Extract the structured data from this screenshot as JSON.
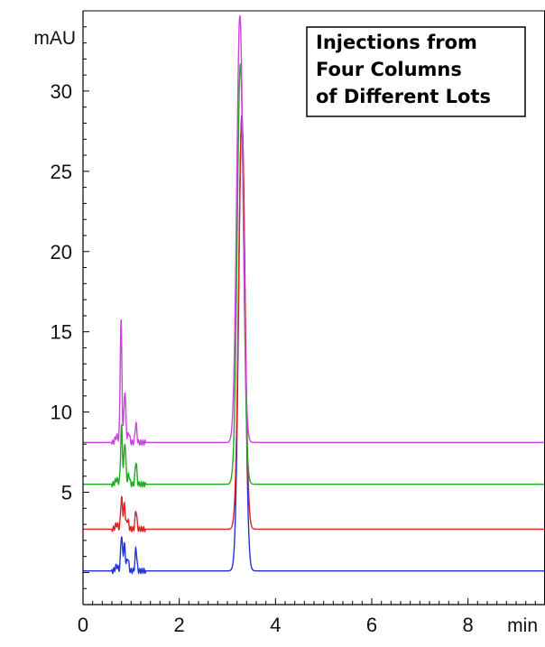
{
  "chart_data": {
    "type": "line",
    "title_lines": [
      "Injections from",
      "Four Columns",
      "of Different Lots"
    ],
    "xlabel": "",
    "ylabel": "",
    "x_unit": "min",
    "y_unit": "mAU",
    "xlim": [
      0,
      9.6
    ],
    "ylim": [
      -2,
      35
    ],
    "x_ticks": [
      0,
      2,
      4,
      6,
      8
    ],
    "y_ticks": [
      5,
      10,
      15,
      20,
      25,
      30
    ],
    "x_tick_labels": [
      "0",
      "2",
      "4",
      "6",
      "8"
    ],
    "y_tick_labels": [
      "5",
      "10",
      "15",
      "20",
      "25",
      "30"
    ],
    "grid": false,
    "legend": "none",
    "series": [
      {
        "color": "#2233dd",
        "baseline": 0.1,
        "peaks": [
          {
            "x": 0.7,
            "h": 0.3,
            "w": 0.03
          },
          {
            "x": 0.8,
            "h": 2.2,
            "w": 0.018
          },
          {
            "x": 0.86,
            "h": 1.6,
            "w": 0.02
          },
          {
            "x": 0.93,
            "h": 0.8,
            "w": 0.02
          },
          {
            "x": 1.1,
            "h": 1.4,
            "w": 0.018
          },
          {
            "x": 3.3,
            "h": 28.4,
            "w": 0.065
          }
        ]
      },
      {
        "color": "#dd2222",
        "baseline": 2.7,
        "peaks": [
          {
            "x": 0.7,
            "h": 0.3,
            "w": 0.03
          },
          {
            "x": 0.8,
            "h": 2.0,
            "w": 0.018
          },
          {
            "x": 0.86,
            "h": 1.5,
            "w": 0.02
          },
          {
            "x": 0.93,
            "h": 0.6,
            "w": 0.02
          },
          {
            "x": 1.1,
            "h": 1.2,
            "w": 0.018
          },
          {
            "x": 3.3,
            "h": 25.5,
            "w": 0.065
          }
        ]
      },
      {
        "color": "#22aa22",
        "baseline": 5.5,
        "peaks": [
          {
            "x": 0.7,
            "h": 0.3,
            "w": 0.03
          },
          {
            "x": 0.8,
            "h": 3.6,
            "w": 0.018
          },
          {
            "x": 0.87,
            "h": 2.6,
            "w": 0.02
          },
          {
            "x": 0.95,
            "h": 0.6,
            "w": 0.02
          },
          {
            "x": 1.1,
            "h": 1.4,
            "w": 0.018
          },
          {
            "x": 3.27,
            "h": 26.2,
            "w": 0.065
          }
        ]
      },
      {
        "color": "#cc44dd",
        "baseline": 8.1,
        "peaks": [
          {
            "x": 0.7,
            "h": 0.4,
            "w": 0.03
          },
          {
            "x": 0.79,
            "h": 7.6,
            "w": 0.018
          },
          {
            "x": 0.87,
            "h": 3.2,
            "w": 0.02
          },
          {
            "x": 0.95,
            "h": 0.6,
            "w": 0.02
          },
          {
            "x": 1.1,
            "h": 1.2,
            "w": 0.018
          },
          {
            "x": 3.26,
            "h": 26.6,
            "w": 0.065
          }
        ]
      }
    ]
  }
}
